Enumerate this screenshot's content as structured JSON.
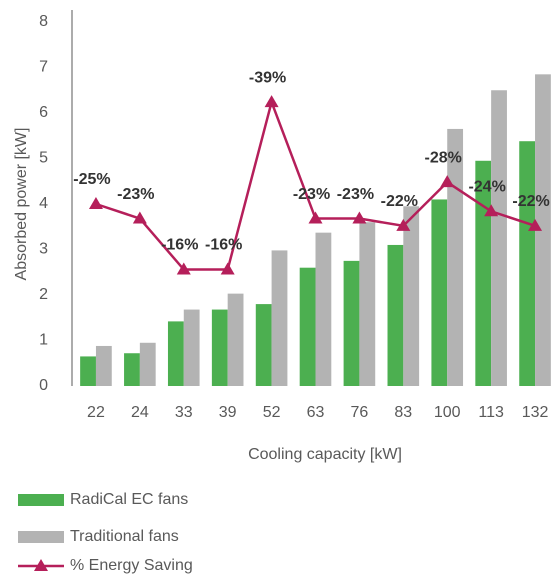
{
  "chart_data": {
    "type": "bar",
    "categories": [
      22,
      24,
      33,
      39,
      52,
      63,
      76,
      83,
      100,
      113,
      132
    ],
    "series": [
      {
        "name": "RadiCal EC fans",
        "color": "#4caf50",
        "type": "bar",
        "values": [
          0.65,
          0.72,
          1.42,
          1.68,
          1.8,
          2.6,
          2.75,
          3.1,
          4.1,
          4.95,
          5.38
        ]
      },
      {
        "name": "Traditional fans",
        "color": "#b3b3b3",
        "type": "bar",
        "values": [
          0.88,
          0.95,
          1.68,
          2.03,
          2.98,
          3.37,
          3.6,
          3.95,
          5.65,
          6.5,
          6.85
        ]
      },
      {
        "name": "% Energy Saving",
        "color": "#b51f5a",
        "type": "line",
        "axis": "y2",
        "values": [
          -25,
          -23,
          -16,
          -16,
          -39,
          -23,
          -23,
          -22,
          -28,
          -24,
          -22
        ],
        "value_labels": [
          "-25%",
          "-23%",
          "-16%",
          "-16%",
          "-39%",
          "-23%",
          "-23%",
          "-22%",
          "-28%",
          "-24%",
          "-22%"
        ]
      }
    ],
    "x_label": "Cooling capacity [kW]",
    "y_label": "Absorbed power [kW]",
    "ylim": [
      0,
      8
    ],
    "yticks": [
      0,
      1,
      2,
      3,
      4,
      5,
      6,
      7,
      8
    ],
    "y2lim": [
      0,
      -50
    ],
    "grid": false,
    "legend": "bottom"
  }
}
